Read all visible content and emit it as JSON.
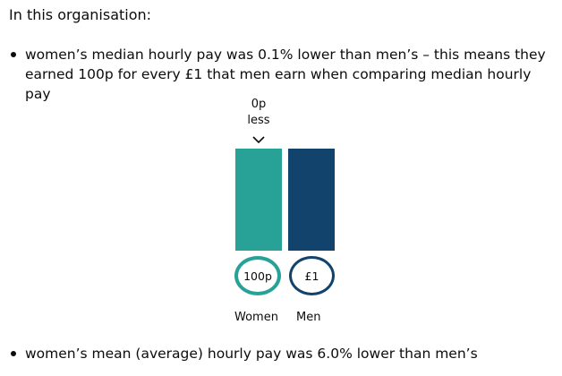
{
  "intro": "In this organisation:",
  "bullets": [
    "women’s median hourly pay was 0.1% lower than men’s – this means they earned 100p for every £1 that men earn when comparing median hourly pay",
    "women’s mean (average) hourly pay was 6.0% lower than men’s"
  ],
  "colors": {
    "women": "#28a197",
    "men": "#12436d",
    "text": "#0b0c0c"
  },
  "icons": {
    "gap_marker": "chevron-down-icon"
  },
  "chart_data": {
    "type": "bar",
    "categories": [
      "Women",
      "Men"
    ],
    "values": [
      100,
      100
    ],
    "value_labels": [
      "100p",
      "£1"
    ],
    "gap_label": [
      "0p",
      "less"
    ],
    "ylim": [
      0,
      100
    ],
    "title": "",
    "xlabel": "",
    "ylabel": ""
  }
}
